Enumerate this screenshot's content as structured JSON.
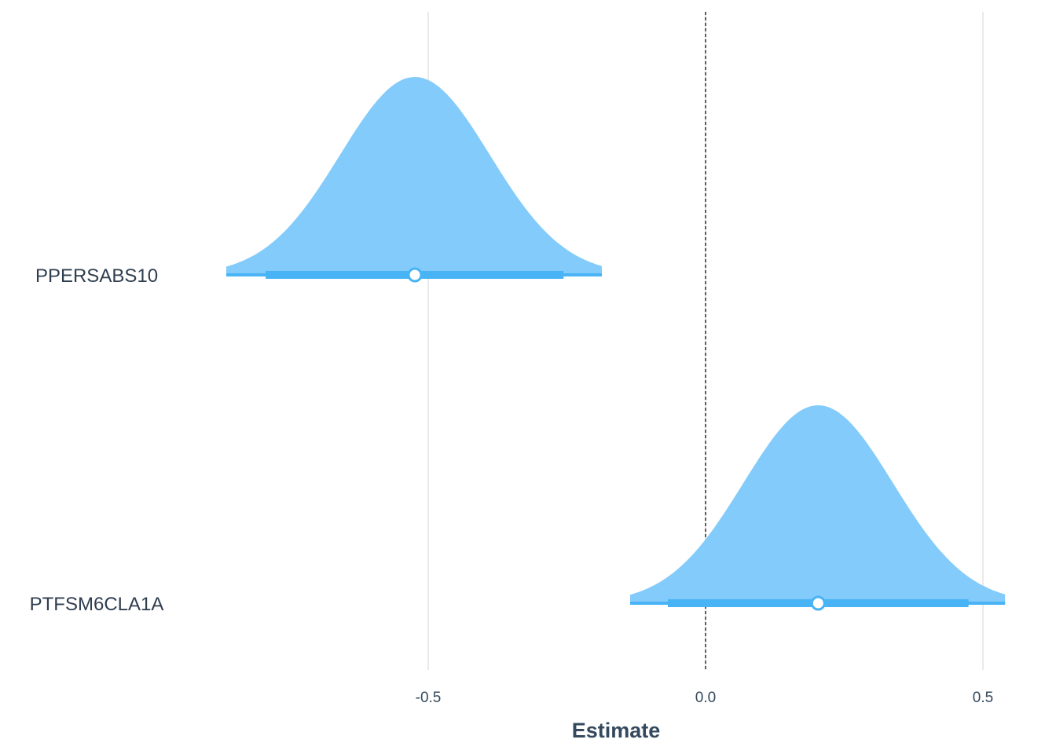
{
  "chart_data": {
    "type": "area",
    "chart_kind": "posterior-density-ridges",
    "title": "",
    "xlabel": "Estimate",
    "ylabel": "",
    "xlim": [
      -1.0,
      0.54
    ],
    "x_ticks": [
      -0.5,
      0.0,
      0.5
    ],
    "x_tick_labels": [
      "-0.5",
      "0.0",
      "0.5"
    ],
    "reference_line": {
      "x": 0.0,
      "style": "dashed",
      "color": "#000000"
    },
    "grid": {
      "vertical_major": true,
      "horizontal": false,
      "color": "#e3e3e3"
    },
    "legend": "none",
    "colors": {
      "density_fill": "#82cbfb",
      "interval": "#48b3f5",
      "point_fill": "#ffffff",
      "axis_text": "#34495e"
    },
    "series": [
      {
        "name": "PPERSABS10",
        "median": -0.524,
        "sd": 0.135,
        "density_range": [
          -0.864,
          -0.187
        ],
        "ci_inner": [
          -0.793,
          -0.256
        ],
        "ci_outer": [
          -0.864,
          -0.187
        ]
      },
      {
        "name": "PTFSM6CLA1A",
        "median": 0.203,
        "sd": 0.135,
        "density_range": [
          -0.136,
          0.54
        ],
        "ci_inner": [
          -0.068,
          0.474
        ],
        "ci_outer": [
          -0.136,
          0.54
        ]
      }
    ]
  }
}
